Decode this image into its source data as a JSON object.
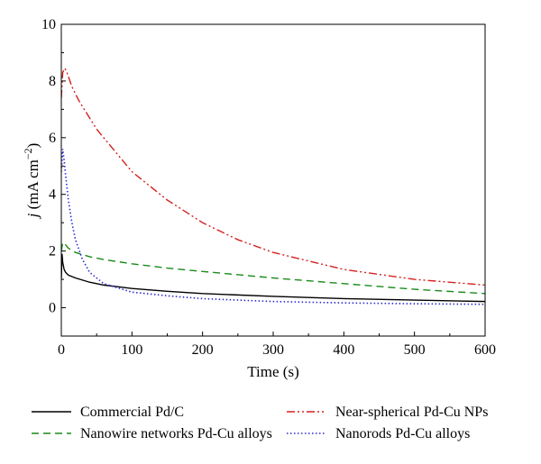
{
  "chart_data": {
    "type": "line",
    "xlabel": "Time (s)",
    "ylabel_italic": "j",
    "ylabel_rest": " (mA cm",
    "ylabel_sup": "−2",
    "ylabel_close": ")",
    "xlim": [
      0,
      600
    ],
    "ylim": [
      -1,
      10
    ],
    "xticks": [
      "0",
      "100",
      "200",
      "300",
      "400",
      "500",
      "600"
    ],
    "yticks": [
      "0",
      "2",
      "4",
      "6",
      "8",
      "10"
    ],
    "grid": false,
    "legend_position": "bottom",
    "series": [
      {
        "name": "Commercial Pd/C",
        "color": "#000000",
        "dash": "solid",
        "x": [
          0,
          1,
          2,
          4,
          6,
          10,
          20,
          40,
          60,
          100,
          150,
          200,
          300,
          400,
          500,
          600
        ],
        "y": [
          1.0,
          1.9,
          1.6,
          1.35,
          1.25,
          1.15,
          1.05,
          0.9,
          0.8,
          0.68,
          0.58,
          0.5,
          0.4,
          0.32,
          0.27,
          0.22
        ]
      },
      {
        "name": "Nanowire networks Pd-Cu alloys",
        "color": "#1a8a1a",
        "dash": "dash",
        "x": [
          0,
          2,
          5,
          10,
          20,
          40,
          60,
          100,
          150,
          200,
          300,
          400,
          500,
          600
        ],
        "y": [
          2.0,
          2.3,
          2.25,
          2.1,
          1.95,
          1.8,
          1.7,
          1.55,
          1.4,
          1.28,
          1.05,
          0.85,
          0.65,
          0.5
        ]
      },
      {
        "name": "Near-spherical Pd-Cu NPs",
        "color": "#d42020",
        "dash": "dashdotdot",
        "x": [
          0,
          2,
          5,
          8,
          15,
          25,
          50,
          100,
          150,
          200,
          250,
          300,
          400,
          500,
          600
        ],
        "y": [
          7.4,
          8.3,
          8.45,
          8.3,
          7.8,
          7.3,
          6.3,
          4.8,
          3.8,
          3.0,
          2.4,
          1.95,
          1.35,
          1.0,
          0.8
        ]
      },
      {
        "name": "Nanorods Pd-Cu alloys",
        "color": "#2a2ad0",
        "dash": "dot",
        "x": [
          0,
          2,
          4,
          6,
          10,
          15,
          20,
          30,
          40,
          60,
          100,
          150,
          200,
          300,
          400,
          500,
          600
        ],
        "y": [
          4.8,
          5.6,
          5.2,
          4.7,
          3.8,
          3.0,
          2.4,
          1.7,
          1.25,
          0.85,
          0.55,
          0.42,
          0.32,
          0.22,
          0.17,
          0.14,
          0.12
        ]
      }
    ],
    "legend_order": [
      0,
      2,
      1,
      3
    ]
  }
}
